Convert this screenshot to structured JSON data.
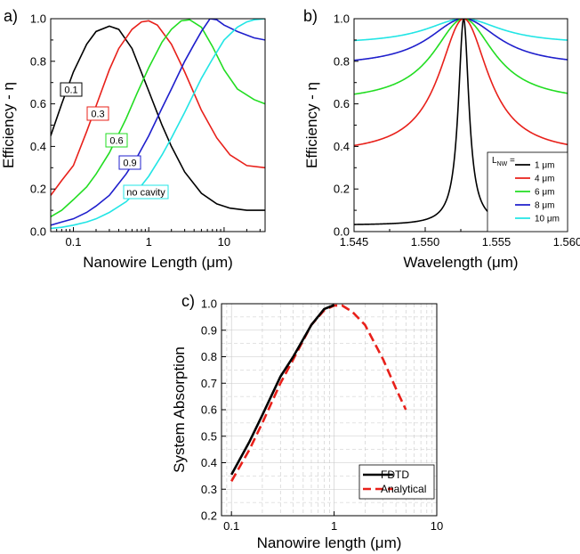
{
  "chart_data": [
    {
      "panel": "a)",
      "type": "line",
      "xlabel": "Nanowire Length (μm)",
      "ylabel": "Efficiency - η",
      "xscale": "log",
      "xlim": [
        0.05,
        35
      ],
      "ylim": [
        0,
        1.0
      ],
      "xticks": [
        "0.1",
        "1",
        "10"
      ],
      "yticks": [
        "0.0",
        "0.2",
        "0.4",
        "0.6",
        "0.8",
        "1.0"
      ],
      "series": [
        {
          "name": "0.1",
          "color": "#000000",
          "x": [
            0.05,
            0.07,
            0.1,
            0.15,
            0.2,
            0.3,
            0.4,
            0.6,
            1,
            1.5,
            2,
            3,
            5,
            8,
            12,
            20,
            35
          ],
          "y": [
            0.45,
            0.6,
            0.75,
            0.88,
            0.94,
            0.965,
            0.95,
            0.86,
            0.66,
            0.5,
            0.4,
            0.28,
            0.18,
            0.13,
            0.11,
            0.1,
            0.1
          ]
        },
        {
          "name": "0.3",
          "color": "#e8201a",
          "x": [
            0.05,
            0.07,
            0.1,
            0.15,
            0.2,
            0.3,
            0.4,
            0.6,
            0.8,
            1,
            1.3,
            2,
            3,
            5,
            8,
            12,
            20,
            35
          ],
          "y": [
            0.17,
            0.24,
            0.31,
            0.47,
            0.59,
            0.76,
            0.86,
            0.95,
            0.985,
            0.99,
            0.97,
            0.88,
            0.75,
            0.57,
            0.44,
            0.36,
            0.31,
            0.3
          ]
        },
        {
          "name": "0.6",
          "color": "#22dd22",
          "x": [
            0.05,
            0.07,
            0.1,
            0.15,
            0.2,
            0.3,
            0.5,
            0.7,
            1,
            1.5,
            2,
            2.7,
            3.5,
            5,
            7,
            10,
            15,
            25,
            35
          ],
          "y": [
            0.07,
            0.1,
            0.15,
            0.21,
            0.27,
            0.37,
            0.53,
            0.65,
            0.77,
            0.89,
            0.95,
            0.99,
            0.995,
            0.96,
            0.87,
            0.76,
            0.67,
            0.62,
            0.6
          ]
        },
        {
          "name": "0.9",
          "color": "#1f1fcc",
          "x": [
            0.05,
            0.07,
            0.1,
            0.15,
            0.2,
            0.3,
            0.5,
            0.7,
            1,
            1.5,
            2,
            3,
            4,
            5,
            6.5,
            8,
            10,
            15,
            25,
            35
          ],
          "y": [
            0.03,
            0.045,
            0.06,
            0.09,
            0.12,
            0.17,
            0.27,
            0.35,
            0.45,
            0.58,
            0.67,
            0.8,
            0.88,
            0.94,
            1.0,
            0.995,
            0.97,
            0.94,
            0.91,
            0.9
          ]
        },
        {
          "name": "no cavity",
          "color": "#22e5e5",
          "x": [
            0.05,
            0.07,
            0.1,
            0.15,
            0.2,
            0.3,
            0.5,
            0.7,
            1,
            1.5,
            2,
            3,
            5,
            7,
            10,
            15,
            20,
            25,
            35
          ],
          "y": [
            0.015,
            0.02,
            0.03,
            0.045,
            0.06,
            0.09,
            0.14,
            0.19,
            0.26,
            0.36,
            0.44,
            0.56,
            0.72,
            0.81,
            0.9,
            0.96,
            0.985,
            0.995,
            1.0
          ]
        }
      ]
    },
    {
      "panel": "b)",
      "type": "line",
      "xlabel": "Wavelength (μm)",
      "ylabel": "Efficiency - η",
      "xlim": [
        1.545,
        1.56
      ],
      "ylim": [
        0,
        1.0
      ],
      "xticks": [
        "1.545",
        "1.550",
        "1.555",
        "1.560"
      ],
      "yticks": [
        "0.0",
        "0.2",
        "0.4",
        "0.6",
        "0.8",
        "1.0"
      ],
      "legend_title": "L",
      "legend_title_sub": "NW",
      "legend_title_suffix": " =",
      "legend_location": "lower-right",
      "center": 1.5527,
      "series": [
        {
          "name": "1 μm",
          "color": "#000000",
          "min": 0.03,
          "width": 0.00045
        },
        {
          "name": "4 μm",
          "color": "#e8201a",
          "min": 0.36,
          "width": 0.0021
        },
        {
          "name": "6 μm",
          "color": "#22dd22",
          "min": 0.605,
          "width": 0.0026
        },
        {
          "name": "8 μm",
          "color": "#1f1fcc",
          "min": 0.775,
          "width": 0.003
        },
        {
          "name": "10 μm",
          "color": "#22e5e5",
          "min": 0.88,
          "width": 0.0032
        }
      ]
    },
    {
      "panel": "c)",
      "type": "line",
      "xlabel": "Nanowire length (μm)",
      "ylabel": "System Absorption",
      "xscale": "log",
      "xlim": [
        0.08,
        10
      ],
      "ylim": [
        0.2,
        1.0
      ],
      "xticks": [
        "0.1",
        "1",
        "10"
      ],
      "yticks": [
        "0.2",
        "0.3",
        "0.4",
        "0.5",
        "0.6",
        "0.7",
        "0.8",
        "0.9",
        "1.0"
      ],
      "grid": true,
      "legend_location": "lower-right",
      "series": [
        {
          "name": "FDTD",
          "color": "#000000",
          "dash": "solid",
          "x": [
            0.1,
            0.15,
            0.2,
            0.3,
            0.4,
            0.6,
            0.8,
            1.0
          ],
          "y": [
            0.355,
            0.48,
            0.58,
            0.725,
            0.8,
            0.92,
            0.98,
            0.995
          ]
        },
        {
          "name": "Analytical",
          "color": "#e8201a",
          "dash": "dashed",
          "x": [
            0.1,
            0.15,
            0.2,
            0.3,
            0.4,
            0.6,
            0.8,
            1.0,
            1.2,
            1.5,
            2,
            3,
            4,
            5
          ],
          "y": [
            0.33,
            0.45,
            0.55,
            0.7,
            0.79,
            0.92,
            0.975,
            0.993,
            0.993,
            0.97,
            0.92,
            0.79,
            0.68,
            0.6
          ]
        }
      ]
    }
  ]
}
